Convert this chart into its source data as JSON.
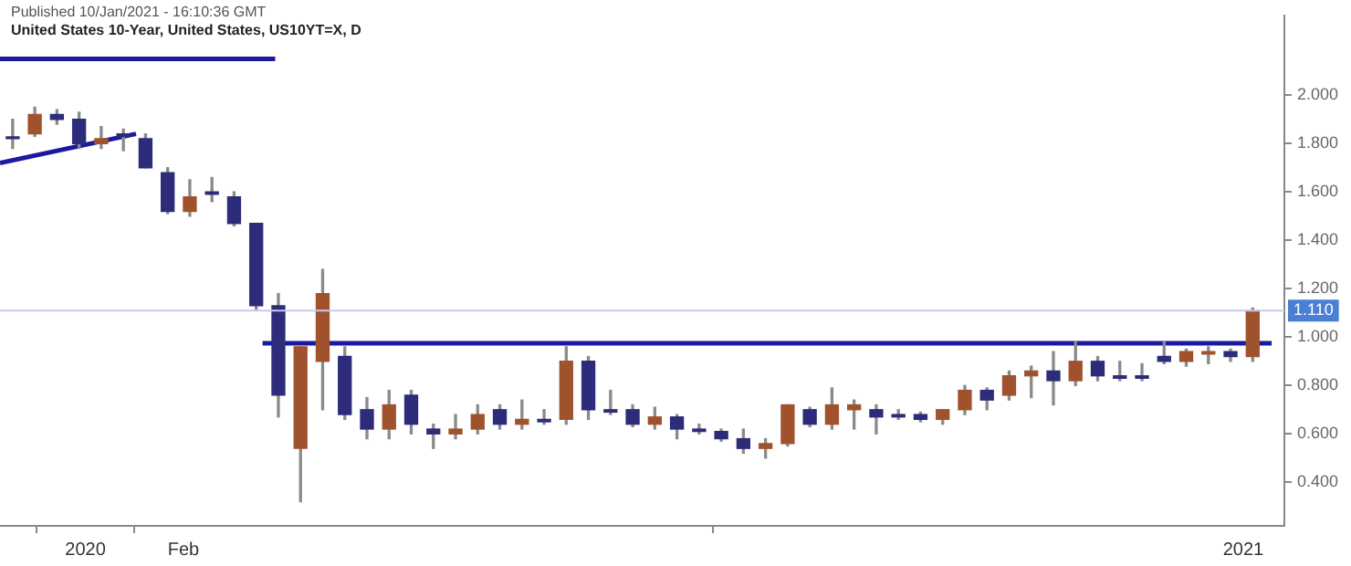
{
  "chart_data": {
    "type": "candlestick",
    "title": "United States 10-Year, United States, US10YT=X, D",
    "subtitle": "Published 10/Jan/2021 - 16:10:36 GMT",
    "xlim": [
      "2019-12-05",
      "2021-01-14"
    ],
    "xticks": [
      {
        "value": "2020-01-01",
        "label": "2020"
      },
      {
        "value": "2020-02-01",
        "label": "Feb"
      },
      {
        "value": "2021-01-01",
        "label": "2021"
      }
    ],
    "ylim": [
      0.22,
      2.33
    ],
    "yticks": [
      {
        "value": 0.4,
        "label": "0.400"
      },
      {
        "value": 0.6,
        "label": "0.600"
      },
      {
        "value": 0.8,
        "label": "0.800"
      },
      {
        "value": 1.0,
        "label": "1.000"
      },
      {
        "value": 1.2,
        "label": "1.200"
      },
      {
        "value": 1.4,
        "label": "1.400"
      },
      {
        "value": 1.6,
        "label": "1.600"
      },
      {
        "value": 1.8,
        "label": "1.800"
      },
      {
        "value": 2.0,
        "label": "2.000"
      }
    ],
    "grid": false,
    "legend": false,
    "ref_lines": [
      {
        "axis": "y",
        "value": 1.11,
        "label": "1.110",
        "color": "#c8c8ec"
      }
    ],
    "series": [
      {
        "x": [
          "2019-12-09",
          "2019-12-16",
          "2019-12-23",
          "2019-12-30",
          "2020-01-06",
          "2020-01-13",
          "2020-01-20",
          "2020-01-27",
          "2020-02-03",
          "2020-02-10",
          "2020-02-17",
          "2020-02-24",
          "2020-03-02",
          "2020-03-09",
          "2020-03-16",
          "2020-03-23",
          "2020-03-30",
          "2020-04-06",
          "2020-04-13",
          "2020-04-20",
          "2020-04-27",
          "2020-05-04",
          "2020-05-11",
          "2020-05-18",
          "2020-05-25",
          "2020-06-01",
          "2020-06-08",
          "2020-06-15",
          "2020-06-22",
          "2020-06-29",
          "2020-07-06",
          "2020-07-13",
          "2020-07-20",
          "2020-07-27",
          "2020-08-03",
          "2020-08-10",
          "2020-08-17",
          "2020-08-24",
          "2020-08-31",
          "2020-09-07",
          "2020-09-14",
          "2020-09-21",
          "2020-09-28",
          "2020-10-05",
          "2020-10-12",
          "2020-10-19",
          "2020-10-26",
          "2020-11-02",
          "2020-11-09",
          "2020-11-16",
          "2020-11-23",
          "2020-11-30",
          "2020-12-07",
          "2020-12-14",
          "2020-12-21",
          "2020-12-28",
          "2021-01-04"
        ],
        "ohlc": [
          [
            1.82,
            1.9,
            1.78,
            1.82
          ],
          [
            1.84,
            1.95,
            1.83,
            1.92
          ],
          [
            1.92,
            1.94,
            1.88,
            1.9
          ],
          [
            1.9,
            1.93,
            1.78,
            1.8
          ],
          [
            1.8,
            1.87,
            1.78,
            1.82
          ],
          [
            1.84,
            1.86,
            1.77,
            1.83
          ],
          [
            1.82,
            1.84,
            1.7,
            1.7
          ],
          [
            1.68,
            1.7,
            1.51,
            1.52
          ],
          [
            1.52,
            1.65,
            1.5,
            1.58
          ],
          [
            1.6,
            1.66,
            1.56,
            1.59
          ],
          [
            1.58,
            1.6,
            1.46,
            1.47
          ],
          [
            1.47,
            1.47,
            1.11,
            1.13
          ],
          [
            1.13,
            1.18,
            0.67,
            0.76
          ],
          [
            0.54,
            0.96,
            0.32,
            0.96
          ],
          [
            0.9,
            1.28,
            0.7,
            1.18
          ],
          [
            0.92,
            0.96,
            0.66,
            0.68
          ],
          [
            0.7,
            0.75,
            0.58,
            0.62
          ],
          [
            0.62,
            0.78,
            0.58,
            0.72
          ],
          [
            0.76,
            0.78,
            0.6,
            0.64
          ],
          [
            0.62,
            0.64,
            0.54,
            0.6
          ],
          [
            0.6,
            0.68,
            0.58,
            0.62
          ],
          [
            0.62,
            0.72,
            0.6,
            0.68
          ],
          [
            0.7,
            0.72,
            0.62,
            0.64
          ],
          [
            0.64,
            0.74,
            0.62,
            0.66
          ],
          [
            0.66,
            0.7,
            0.64,
            0.65
          ],
          [
            0.66,
            0.96,
            0.64,
            0.9
          ],
          [
            0.9,
            0.92,
            0.66,
            0.7
          ],
          [
            0.7,
            0.78,
            0.68,
            0.69
          ],
          [
            0.7,
            0.72,
            0.63,
            0.64
          ],
          [
            0.64,
            0.71,
            0.62,
            0.67
          ],
          [
            0.67,
            0.68,
            0.58,
            0.62
          ],
          [
            0.62,
            0.64,
            0.6,
            0.61
          ],
          [
            0.61,
            0.62,
            0.57,
            0.58
          ],
          [
            0.58,
            0.62,
            0.52,
            0.54
          ],
          [
            0.54,
            0.58,
            0.5,
            0.56
          ],
          [
            0.56,
            0.72,
            0.55,
            0.72
          ],
          [
            0.7,
            0.71,
            0.63,
            0.64
          ],
          [
            0.64,
            0.79,
            0.62,
            0.72
          ],
          [
            0.7,
            0.74,
            0.62,
            0.72
          ],
          [
            0.7,
            0.72,
            0.6,
            0.67
          ],
          [
            0.68,
            0.7,
            0.66,
            0.67
          ],
          [
            0.68,
            0.69,
            0.65,
            0.66
          ],
          [
            0.66,
            0.7,
            0.64,
            0.7
          ],
          [
            0.7,
            0.8,
            0.68,
            0.78
          ],
          [
            0.78,
            0.79,
            0.7,
            0.74
          ],
          [
            0.76,
            0.86,
            0.74,
            0.84
          ],
          [
            0.84,
            0.88,
            0.75,
            0.86
          ],
          [
            0.86,
            0.94,
            0.72,
            0.82
          ],
          [
            0.82,
            0.98,
            0.8,
            0.9
          ],
          [
            0.9,
            0.92,
            0.82,
            0.84
          ],
          [
            0.84,
            0.9,
            0.82,
            0.83
          ],
          [
            0.84,
            0.89,
            0.82,
            0.83
          ],
          [
            0.92,
            0.98,
            0.89,
            0.9
          ],
          [
            0.9,
            0.95,
            0.88,
            0.94
          ],
          [
            0.93,
            0.96,
            0.89,
            0.94
          ],
          [
            0.94,
            0.95,
            0.9,
            0.92
          ],
          [
            0.92,
            1.12,
            0.9,
            1.11
          ]
        ],
        "colors": [
          "#2c2c7a",
          "#a0522d",
          "#2c2c7a",
          "#2c2c7a",
          "#a0522d",
          "#2c2c7a",
          "#2c2c7a",
          "#2c2c7a",
          "#a0522d",
          "#2c2c7a",
          "#2c2c7a",
          "#2c2c7a",
          "#2c2c7a",
          "#a0522d",
          "#a0522d",
          "#2c2c7a",
          "#2c2c7a",
          "#a0522d",
          "#2c2c7a",
          "#2c2c7a",
          "#a0522d",
          "#a0522d",
          "#2c2c7a",
          "#a0522d",
          "#2c2c7a",
          "#a0522d",
          "#2c2c7a",
          "#2c2c7a",
          "#2c2c7a",
          "#a0522d",
          "#2c2c7a",
          "#2c2c7a",
          "#2c2c7a",
          "#2c2c7a",
          "#a0522d",
          "#a0522d",
          "#2c2c7a",
          "#a0522d",
          "#a0522d",
          "#2c2c7a",
          "#2c2c7a",
          "#2c2c7a",
          "#a0522d",
          "#a0522d",
          "#2c2c7a",
          "#a0522d",
          "#a0522d",
          "#2c2c7a",
          "#a0522d",
          "#2c2c7a",
          "#2c2c7a",
          "#2c2c7a",
          "#2c2c7a",
          "#a0522d",
          "#a0522d",
          "#2c2c7a",
          "#a0522d"
        ]
      },
      {
        "type": "line",
        "x": [
          "2019-12-05",
          "2020-03-01"
        ],
        "values": [
          2.15,
          2.15
        ],
        "color": "#1a1aa0"
      },
      {
        "type": "line",
        "x": [
          "2019-12-05",
          "2020-01-17"
        ],
        "values": [
          1.72,
          1.84
        ],
        "color": "#1a1aa0"
      },
      {
        "type": "line",
        "x": [
          "2020-02-26",
          "2021-01-10"
        ],
        "values": [
          0.975,
          0.975
        ],
        "color": "#1a1aa0"
      }
    ]
  }
}
